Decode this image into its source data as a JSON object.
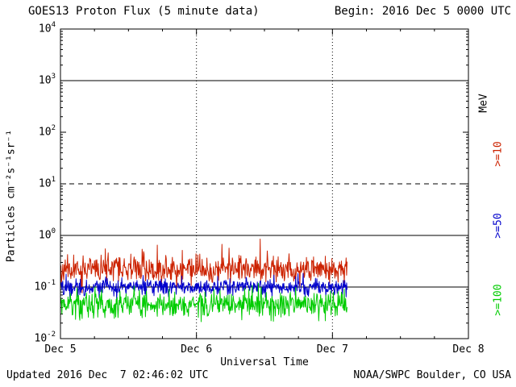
{
  "header": {
    "title": "GOES13 Proton Flux (5 minute data)",
    "begin": "Begin: 2016 Dec 5 0000 UTC"
  },
  "footer": {
    "updated": "Updated 2016 Dec  7 02:46:02 UTC",
    "credit": "NOAA/SWPC Boulder, CO USA"
  },
  "chart_data": {
    "type": "line",
    "title": "GOES13 Proton Flux (5 minute data)",
    "xlabel": "Universal Time",
    "ylabel": "Particles cm⁻²s⁻¹sr⁻¹",
    "x_ticks": [
      "Dec 5",
      "Dec 6",
      "Dec 7",
      "Dec 8"
    ],
    "x_tick_days": [
      0,
      1,
      2,
      3
    ],
    "x_range_days": [
      0,
      3
    ],
    "y_log_range": [
      -2,
      4
    ],
    "y_tick_exponents": [
      4,
      3,
      2,
      1,
      0,
      -1,
      -2
    ],
    "grid": "partial",
    "legend_position": "right-rotated",
    "right_axis_labels": [
      {
        "text": "MeV",
        "color": "#000000"
      },
      {
        "text": ">=10",
        "color": "#cc2200"
      },
      {
        "text": ">=50",
        "color": "#0000cc"
      },
      {
        "text": ">=100",
        "color": "#00cc00"
      }
    ],
    "hlines": [
      {
        "log10": 3,
        "style": "solid"
      },
      {
        "log10": 1,
        "style": "dashed"
      },
      {
        "log10": 0,
        "style": "solid"
      },
      {
        "log10": -1,
        "style": "solid"
      }
    ],
    "vlines_days": [
      1,
      2
    ],
    "sample_interval_minutes": 5,
    "data_start_day": 0,
    "data_end_day": 2.11,
    "series": [
      {
        "name": ">=10 MeV",
        "color": "#cc2200",
        "approx_flux": 0.22,
        "observed_range": [
          0.12,
          0.9
        ],
        "base_log10": -0.66,
        "sigma_log10": 0.12,
        "spike_prob": 0.012,
        "seed": 11,
        "spikes": [
          {
            "day": 0.33,
            "log10": -0.26
          },
          {
            "day": 1.47,
            "log10": -0.07
          }
        ]
      },
      {
        "name": ">=50 MeV",
        "color": "#0000cc",
        "approx_flux": 0.1,
        "observed_range": [
          0.06,
          0.16
        ],
        "base_log10": -1.0,
        "sigma_log10": 0.08,
        "spike_prob": 0,
        "seed": 22,
        "spikes": []
      },
      {
        "name": ">=100 MeV",
        "color": "#00cc00",
        "approx_flux": 0.045,
        "observed_range": [
          0.02,
          0.09
        ],
        "base_log10": -1.34,
        "sigma_log10": 0.13,
        "spike_prob": 0,
        "seed": 33,
        "spikes": []
      }
    ]
  }
}
